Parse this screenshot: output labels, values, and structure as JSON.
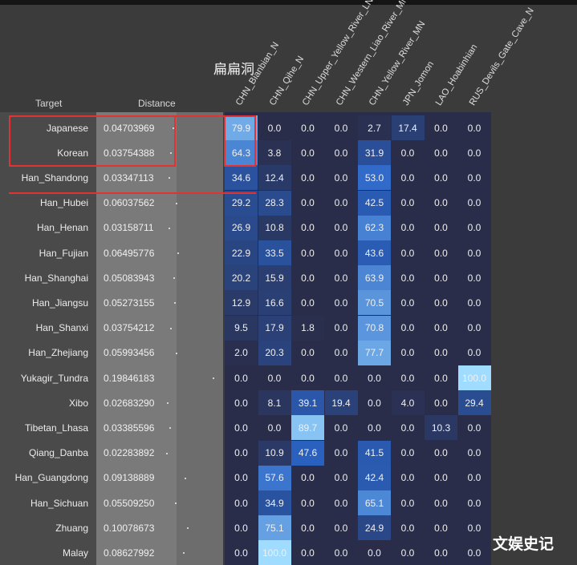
{
  "page_title": "扁扁洞",
  "watermark": "文娱史记",
  "headers": {
    "target": "Target",
    "distance": "Distance"
  },
  "chart_data": {
    "type": "heatmap",
    "columns": [
      "CHN_Bianbian_N",
      "CHN_Qihe_N",
      "CHN_Upper_Yellow_River_LN",
      "CHN_Western_Liao_River_MN",
      "CHN_Yellow_River_MN",
      "JPN_Jomon",
      "LAO_Hoabinhian",
      "RUS_Devils_Gate_Cave_N"
    ],
    "rows": [
      {
        "target": "Japanese",
        "distance": "0.04703969",
        "distance_value": 0.04703969,
        "values": [
          "79.9",
          "0.0",
          "0.0",
          "0.0",
          "2.7",
          "17.4",
          "0.0",
          "0.0"
        ]
      },
      {
        "target": "Korean",
        "distance": "0.03754388",
        "distance_value": 0.03754388,
        "values": [
          "64.3",
          "3.8",
          "0.0",
          "0.0",
          "31.9",
          "0.0",
          "0.0",
          "0.0"
        ]
      },
      {
        "target": "Han_Shandong",
        "distance": "0.03347113",
        "distance_value": 0.03347113,
        "values": [
          "34.6",
          "12.4",
          "0.0",
          "0.0",
          "53.0",
          "0.0",
          "0.0",
          "0.0"
        ]
      },
      {
        "target": "Han_Hubei",
        "distance": "0.06037562",
        "distance_value": 0.06037562,
        "values": [
          "29.2",
          "28.3",
          "0.0",
          "0.0",
          "42.5",
          "0.0",
          "0.0",
          "0.0"
        ]
      },
      {
        "target": "Han_Henan",
        "distance": "0.03158711",
        "distance_value": 0.03158711,
        "values": [
          "26.9",
          "10.8",
          "0.0",
          "0.0",
          "62.3",
          "0.0",
          "0.0",
          "0.0"
        ]
      },
      {
        "target": "Han_Fujian",
        "distance": "0.06495776",
        "distance_value": 0.06495776,
        "values": [
          "22.9",
          "33.5",
          "0.0",
          "0.0",
          "43.6",
          "0.0",
          "0.0",
          "0.0"
        ]
      },
      {
        "target": "Han_Shanghai",
        "distance": "0.05083943",
        "distance_value": 0.05083943,
        "values": [
          "20.2",
          "15.9",
          "0.0",
          "0.0",
          "63.9",
          "0.0",
          "0.0",
          "0.0"
        ]
      },
      {
        "target": "Han_Jiangsu",
        "distance": "0.05273155",
        "distance_value": 0.05273155,
        "values": [
          "12.9",
          "16.6",
          "0.0",
          "0.0",
          "70.5",
          "0.0",
          "0.0",
          "0.0"
        ]
      },
      {
        "target": "Han_Shanxi",
        "distance": "0.03754212",
        "distance_value": 0.03754212,
        "values": [
          "9.5",
          "17.9",
          "1.8",
          "0.0",
          "70.8",
          "0.0",
          "0.0",
          "0.0"
        ]
      },
      {
        "target": "Han_Zhejiang",
        "distance": "0.05993456",
        "distance_value": 0.05993456,
        "values": [
          "2.0",
          "20.3",
          "0.0",
          "0.0",
          "77.7",
          "0.0",
          "0.0",
          "0.0"
        ]
      },
      {
        "target": "Yukagir_Tundra",
        "distance": "0.19846183",
        "distance_value": 0.19846183,
        "values": [
          "0.0",
          "0.0",
          "0.0",
          "0.0",
          "0.0",
          "0.0",
          "0.0",
          "100.0"
        ]
      },
      {
        "target": "Xibo",
        "distance": "0.02683290",
        "distance_value": 0.0268329,
        "values": [
          "0.0",
          "8.1",
          "39.1",
          "19.4",
          "0.0",
          "4.0",
          "0.0",
          "29.4"
        ]
      },
      {
        "target": "Tibetan_Lhasa",
        "distance": "0.03385596",
        "distance_value": 0.03385596,
        "values": [
          "0.0",
          "0.0",
          "89.7",
          "0.0",
          "0.0",
          "0.0",
          "10.3",
          "0.0"
        ]
      },
      {
        "target": "Qiang_Danba",
        "distance": "0.02283892",
        "distance_value": 0.02283892,
        "values": [
          "0.0",
          "10.9",
          "47.6",
          "0.0",
          "41.5",
          "0.0",
          "0.0",
          "0.0"
        ]
      },
      {
        "target": "Han_Guangdong",
        "distance": "0.09138889",
        "distance_value": 0.09138889,
        "values": [
          "0.0",
          "57.6",
          "0.0",
          "0.0",
          "42.4",
          "0.0",
          "0.0",
          "0.0"
        ]
      },
      {
        "target": "Han_Sichuan",
        "distance": "0.05509250",
        "distance_value": 0.0550925,
        "values": [
          "0.0",
          "34.9",
          "0.0",
          "0.0",
          "65.1",
          "0.0",
          "0.0",
          "0.0"
        ]
      },
      {
        "target": "Zhuang",
        "distance": "0.10078673",
        "distance_value": 0.10078673,
        "values": [
          "0.0",
          "75.1",
          "0.0",
          "0.0",
          "24.9",
          "0.0",
          "0.0",
          "0.0"
        ]
      },
      {
        "target": "Malay",
        "distance": "0.08627992",
        "distance_value": 0.08627992,
        "values": [
          "0.0",
          "100.0",
          "0.0",
          "0.0",
          "0.0",
          "0.0",
          "0.0",
          "0.0"
        ]
      }
    ],
    "highlighted_targets": [
      "Japanese",
      "Korean",
      "Han_Shandong"
    ],
    "colors": {
      "low": "#2a2d4a",
      "mid": "#2a63c4",
      "high": "#9fdcff",
      "highlight": "#e23232"
    }
  }
}
